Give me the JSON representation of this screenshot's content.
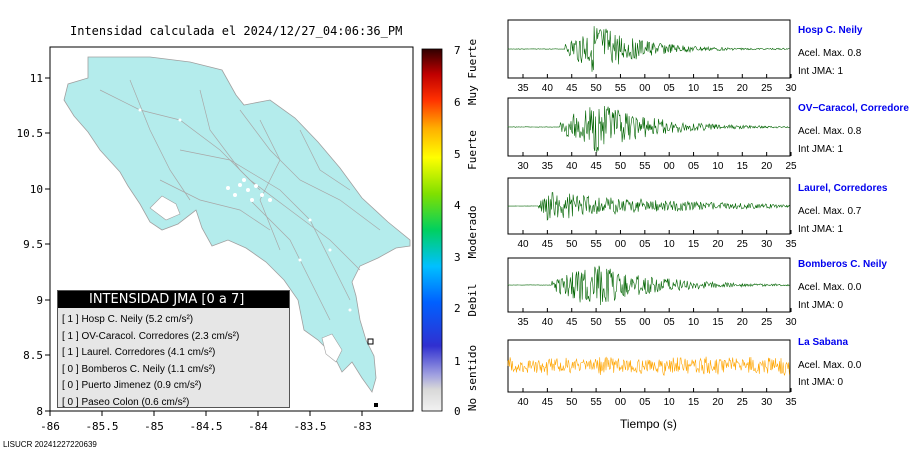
{
  "map": {
    "title": "Intensidad calculada el 2024/12/27_04:06:36_PM",
    "x_ticks": [
      "-86",
      "-85.5",
      "-85",
      "-84.5",
      "-84",
      "-83.5",
      "-83"
    ],
    "y_ticks": [
      "11",
      "10.5",
      "10",
      "9.5",
      "9",
      "8.5",
      "8"
    ]
  },
  "chart_data": [
    {
      "type": "heatmap",
      "title": "Intensidad calculada el 2024/12/27_04:06:36_PM",
      "xlim": [
        -86,
        -82.5
      ],
      "ylim": [
        8,
        11.3
      ],
      "x_ticks": [
        -86,
        -85.5,
        -85,
        -84.5,
        -84,
        -83.5,
        -83
      ],
      "y_ticks": [
        11,
        10.5,
        10,
        9.5,
        9,
        8.5,
        8
      ],
      "colorbar": {
        "range": [
          0,
          7
        ],
        "ticks": [
          "0",
          "1",
          "2",
          "3",
          "4",
          "5",
          "6",
          "7"
        ],
        "categories": [
          "No sentido",
          "Debil",
          "Moderado",
          "Fuerte",
          "Muy Fuerte"
        ]
      }
    },
    {
      "type": "line",
      "xlabel": "Tiempo (s)",
      "series": [
        {
          "name": "Hosp C. Neily",
          "x_ticks": [
            "35",
            "40",
            "45",
            "50",
            "55",
            "00",
            "05",
            "10",
            "15",
            "20",
            "25",
            "30"
          ]
        },
        {
          "name": "OV−Caracol, Corredore",
          "x_ticks": [
            "30",
            "35",
            "40",
            "45",
            "50",
            "55",
            "00",
            "05",
            "10",
            "15",
            "20",
            "25"
          ]
        },
        {
          "name": "Laurel, Corredores",
          "x_ticks": [
            "40",
            "45",
            "50",
            "55",
            "00",
            "05",
            "10",
            "15",
            "20",
            "25",
            "30",
            "35"
          ]
        },
        {
          "name": "Bomberos C. Neily",
          "x_ticks": [
            "35",
            "40",
            "45",
            "50",
            "55",
            "00",
            "05",
            "10",
            "15",
            "20",
            "25",
            "30"
          ]
        },
        {
          "name": "La Sabana",
          "x_ticks": [
            "40",
            "45",
            "50",
            "55",
            "00",
            "05",
            "10",
            "15",
            "20",
            "25",
            "30",
            "35"
          ]
        }
      ]
    }
  ],
  "legend": {
    "title": "INTENSIDAD JMA [0 a 7]",
    "items": [
      "[ 1 ]  Hosp C. Neily (5.2 cm/s²)",
      "[ 1 ]  OV-Caracol. Corredores (2.3 cm/s²)",
      "[ 1 ]  Laurel. Corredores (4.1 cm/s²)",
      "[ 0 ]  Bomberos C. Neily (1.1 cm/s²)",
      "[ 0 ]  Puerto Jimenez (0.9 cm/s²)",
      "[ 0 ]  Paseo Colon (0.6 cm/s²)"
    ]
  },
  "stations": [
    {
      "name": "Hosp C. Neily",
      "acel": "Acel. Max. 0.8",
      "int": "Int JMA: 1",
      "color": "#006400"
    },
    {
      "name": "OV−Caracol, Corredore",
      "acel": "Acel. Max. 0.8",
      "int": "Int JMA: 1",
      "color": "#006400"
    },
    {
      "name": "Laurel, Corredores",
      "acel": "Acel. Max. 0.7",
      "int": "Int JMA: 1",
      "color": "#006400"
    },
    {
      "name": "Bomberos C. Neily",
      "acel": "Acel. Max. 0.0",
      "int": "Int JMA: 0",
      "color": "#006400"
    },
    {
      "name": "La Sabana",
      "acel": "Acel. Max. 0.0",
      "int": "Int JMA: 0",
      "color": "#ffa500"
    }
  ],
  "xlabel": "Tiempo (s)",
  "footer": "LISUCR 20241227220639"
}
